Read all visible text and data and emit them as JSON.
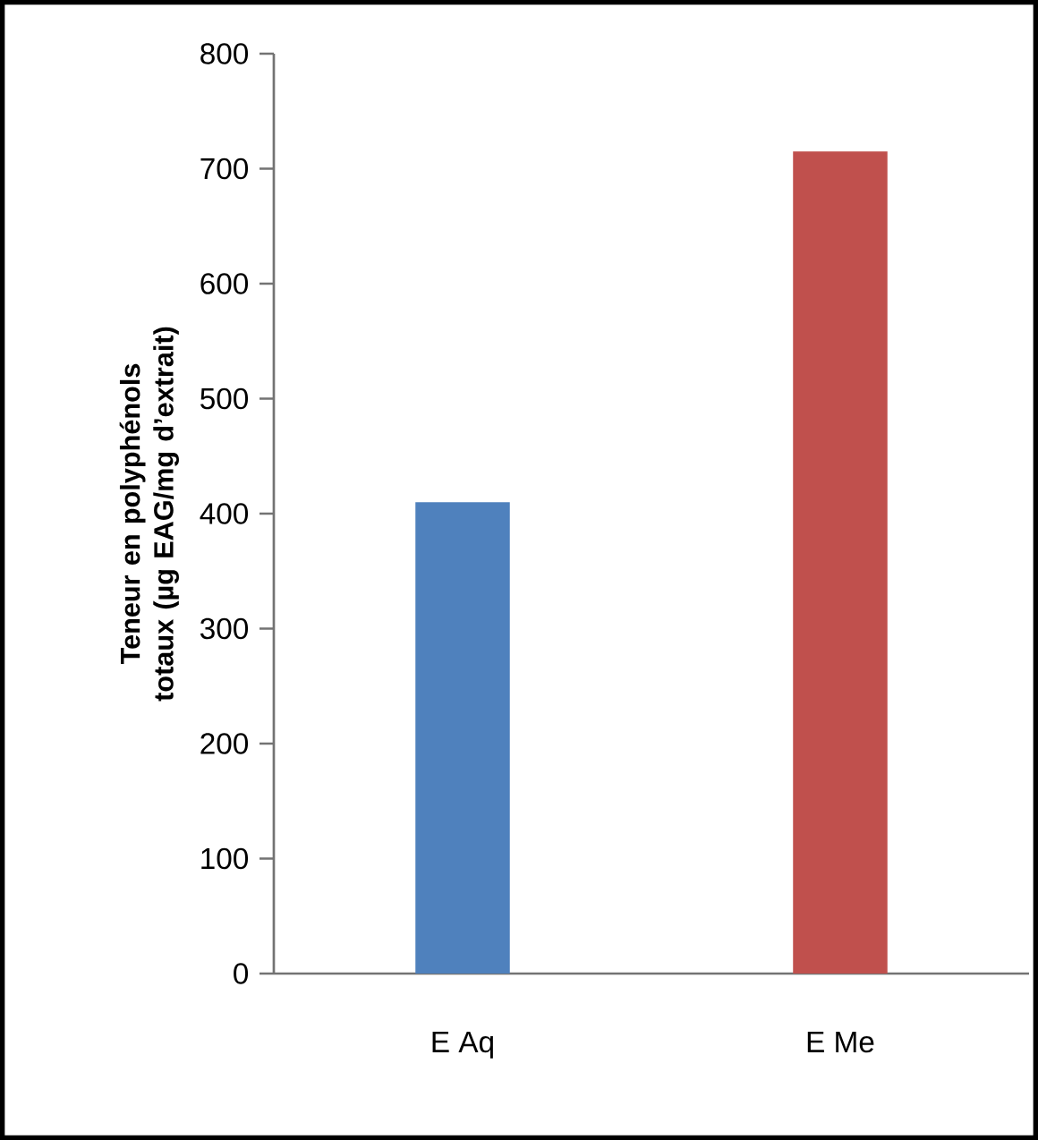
{
  "chart_data": {
    "type": "bar",
    "ylabel": "Teneur en polyphénols totaux (µg EAG/mg d’extrait)",
    "categories": [
      "E Aq",
      "E Me"
    ],
    "values": [
      410,
      715
    ],
    "colors": [
      "#4f81bd",
      "#c0504d"
    ],
    "ylim": [
      0,
      800
    ],
    "yticks": [
      0,
      100,
      200,
      300,
      400,
      500,
      600,
      700,
      800
    ],
    "grid": false
  }
}
